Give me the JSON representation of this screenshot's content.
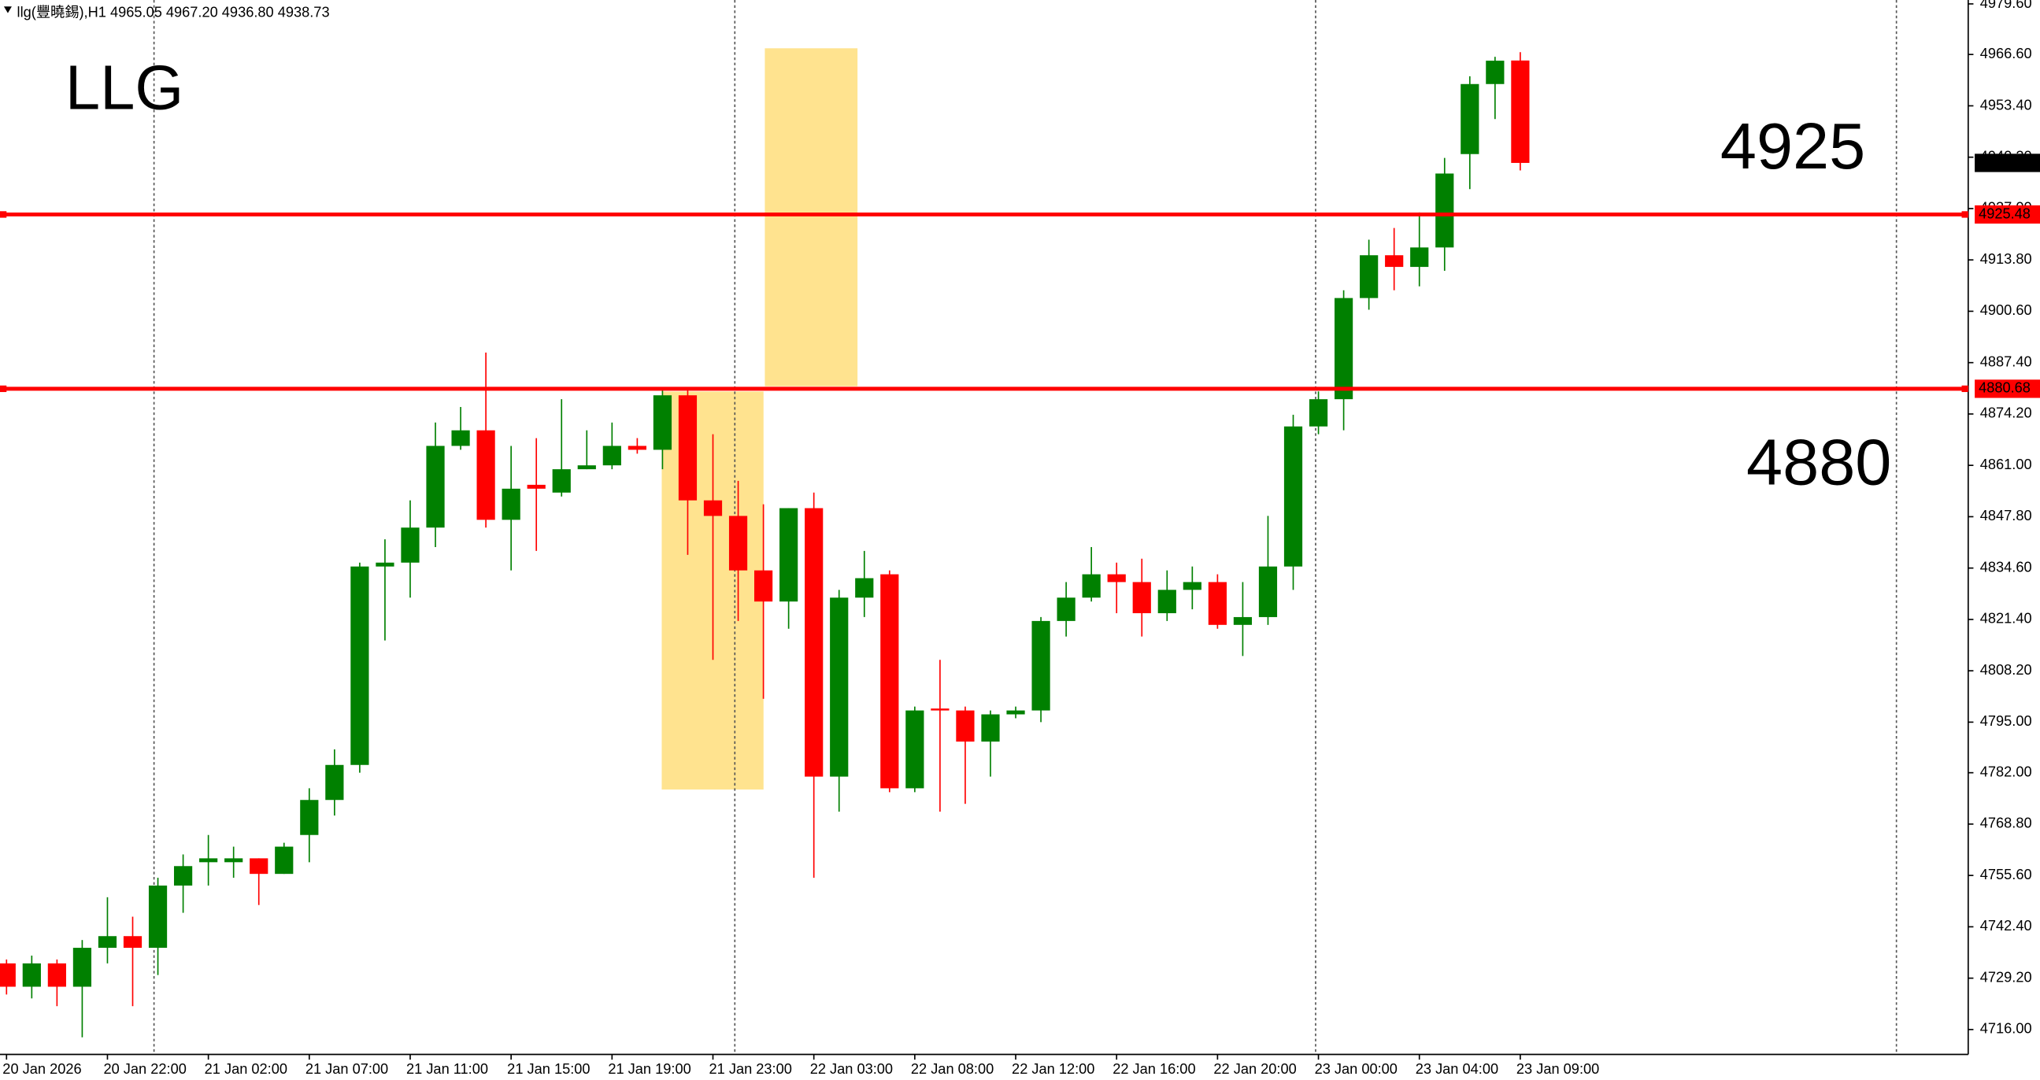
{
  "chart_data": {
    "type": "candlestick",
    "header": "llg(豐曉錫),H1  4965.05 4967.20 4936.80 4938.73",
    "annotations": [
      "LLG",
      "4925",
      "4880"
    ],
    "x": [
      "20 Jan 2026",
      null,
      null,
      null,
      "20 Jan 22:00",
      null,
      null,
      null,
      "21 Jan 02:00",
      null,
      null,
      null,
      "21 Jan 07:00",
      null,
      null,
      null,
      "21 Jan 11:00",
      null,
      null,
      null,
      "21 Jan 15:00",
      null,
      null,
      null,
      "21 Jan 19:00",
      null,
      null,
      null,
      "21 Jan 23:00",
      null,
      null,
      null,
      "22 Jan 03:00",
      null,
      null,
      null,
      "22 Jan 08:00",
      null,
      null,
      null,
      "22 Jan 12:00",
      null,
      null,
      null,
      "22 Jan 16:00",
      null,
      null,
      null,
      "22 Jan 20:00",
      null,
      null,
      null,
      "23 Jan 00:00",
      null,
      null,
      null,
      "23 Jan 04:00",
      null,
      null,
      null,
      "23 Jan 09:00"
    ],
    "open": [
      4733,
      4727,
      4733,
      4727,
      4737,
      4740,
      4737,
      4753,
      4759,
      4759,
      4760,
      4756,
      4766,
      4775,
      4784,
      4835,
      4836,
      4845,
      4866,
      4870,
      4847,
      4856,
      4854,
      4860,
      4861,
      4866,
      4865,
      4879,
      4852,
      4848,
      4834,
      4826,
      4850,
      4781,
      4827,
      4833,
      4778,
      4798.5,
      4798,
      4790,
      4797,
      4798,
      4821,
      4827,
      4833,
      4831,
      4823,
      4829,
      4831,
      4820,
      4822,
      4835,
      4871,
      4878,
      4904,
      4915,
      4912,
      4917,
      4941,
      4959,
      4965.05
    ],
    "high": [
      4734,
      4735,
      4734,
      4739,
      4750,
      4745,
      4755,
      4761,
      4766,
      4763,
      4760,
      4764,
      4778,
      4788,
      4836,
      4842,
      4852,
      4872,
      4876,
      4890,
      4866,
      4868,
      4878,
      4870,
      4872,
      4868,
      4881,
      4881,
      4869,
      4857,
      4851,
      4850,
      4854,
      4829,
      4839,
      4834,
      4799,
      4811,
      4799,
      4798,
      4799,
      4822,
      4831,
      4840,
      4836,
      4837,
      4834,
      4835,
      4833,
      4831,
      4848,
      4874,
      4880,
      4906,
      4919,
      4922,
      4926,
      4940,
      4961,
      4966,
      4967.2
    ],
    "low": [
      4725,
      4724,
      4722,
      4714,
      4733,
      4722,
      4730,
      4746,
      4753,
      4755,
      4748,
      4756,
      4759,
      4771,
      4782,
      4816,
      4827,
      4840,
      4865,
      4845,
      4834,
      4839,
      4853,
      4860,
      4860,
      4864,
      4860,
      4838,
      4811,
      4821,
      4801,
      4819,
      4755,
      4772,
      4822,
      4777,
      4777,
      4772,
      4774,
      4781,
      4796,
      4795,
      4817,
      4826,
      4823,
      4817,
      4821,
      4824,
      4819,
      4812,
      4820,
      4829,
      4869,
      4870,
      4901,
      4906,
      4907,
      4911,
      4932,
      4950,
      4936.8
    ],
    "close": [
      4727,
      4733,
      4727,
      4737,
      4740,
      4737,
      4753,
      4758,
      4760,
      4760,
      4756,
      4763,
      4775,
      4784,
      4835,
      4836,
      4845,
      4866,
      4870,
      4847,
      4855,
      4855,
      4860,
      4861,
      4866,
      4865,
      4879,
      4852,
      4848,
      4834,
      4826,
      4850,
      4781,
      4827,
      4832,
      4778,
      4798,
      4798,
      4790,
      4797,
      4798,
      4821,
      4827,
      4833,
      4831,
      4823,
      4829,
      4831,
      4820,
      4822,
      4835,
      4871,
      4878,
      4904,
      4915,
      4912,
      4917,
      4936,
      4959,
      4965,
      4938.73
    ],
    "up_color": "#008000",
    "down_color": "#ff0000",
    "ylim": [
      4709.6,
      4980.6
    ],
    "yticks": [
      {
        "value": 4979.6,
        "label": "4979.60"
      },
      {
        "value": 4966.6,
        "label": "4966.60"
      },
      {
        "value": 4953.4,
        "label": "4953.40"
      },
      {
        "value": 4940.2,
        "label": "4940.20"
      },
      {
        "value": 4927,
        "label": "4927.00"
      },
      {
        "value": 4913.8,
        "label": "4913.80"
      },
      {
        "value": 4900.6,
        "label": "4900.60"
      },
      {
        "value": 4887.4,
        "label": "4887.40"
      },
      {
        "value": 4874.2,
        "label": "4874.20"
      },
      {
        "value": 4861,
        "label": "4861.00"
      },
      {
        "value": 4847.8,
        "label": "4847.80"
      },
      {
        "value": 4834.6,
        "label": "4834.60"
      },
      {
        "value": 4821.4,
        "label": "4821.40"
      },
      {
        "value": 4808.2,
        "label": "4808.20"
      },
      {
        "value": 4795,
        "label": "4795.00"
      },
      {
        "value": 4782,
        "label": "4782.00"
      },
      {
        "value": 4768.8,
        "label": "4768.80"
      },
      {
        "value": 4755.6,
        "label": "4755.60"
      },
      {
        "value": 4742.4,
        "label": "4742.40"
      },
      {
        "value": 4729.2,
        "label": "4729.20"
      },
      {
        "value": 4716,
        "label": "4716.00"
      }
    ],
    "levels": [
      4925.48,
      4880.68
    ],
    "level_color": "#ff0000",
    "last_price": 4938.73
  }
}
